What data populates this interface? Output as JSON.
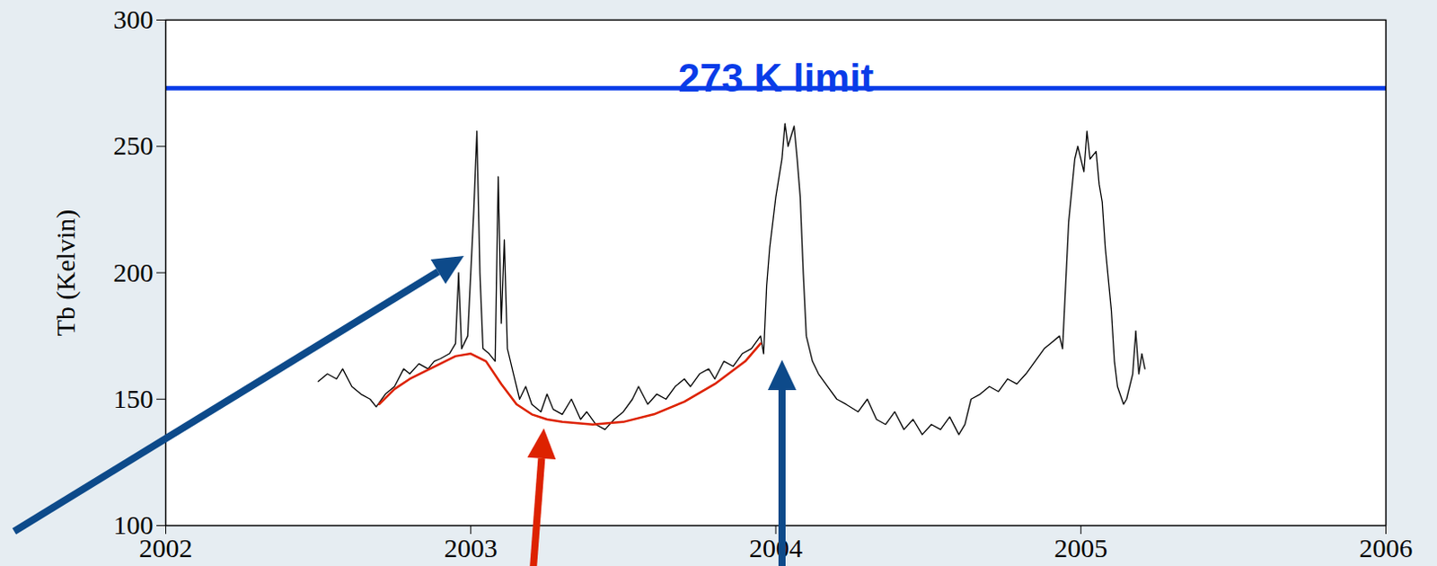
{
  "chart_data": {
    "type": "line",
    "y_label": "Tb (Kelvin)",
    "xlim": [
      2002,
      2006
    ],
    "xticks": [
      2002,
      2003,
      2004,
      2005,
      2006
    ],
    "ylim": [
      100,
      300
    ],
    "yticks": [
      100,
      150,
      200,
      250,
      300
    ],
    "x": [
      2002.5,
      2002.53,
      2002.56,
      2002.58,
      2002.61,
      2002.64,
      2002.67,
      2002.69,
      2002.72,
      2002.75,
      2002.78,
      2002.8,
      2002.83,
      2002.86,
      2002.88,
      2002.9,
      2002.93,
      2002.95,
      2002.96,
      2002.97,
      2002.99,
      2003.01,
      2003.02,
      2003.03,
      2003.04,
      2003.06,
      2003.08,
      2003.09,
      2003.1,
      2003.11,
      2003.12,
      2003.14,
      2003.16,
      2003.18,
      2003.2,
      2003.23,
      2003.25,
      2003.27,
      2003.3,
      2003.33,
      2003.36,
      2003.38,
      2003.41,
      2003.44,
      2003.47,
      2003.5,
      2003.53,
      2003.55,
      2003.58,
      2003.61,
      2003.64,
      2003.67,
      2003.7,
      2003.72,
      2003.75,
      2003.78,
      2003.8,
      2003.83,
      2003.86,
      2003.89,
      2003.92,
      2003.95,
      2003.96,
      2003.97,
      2003.98,
      2004.0,
      2004.02,
      2004.03,
      2004.04,
      2004.06,
      2004.07,
      2004.08,
      2004.09,
      2004.1,
      2004.12,
      2004.14,
      2004.17,
      2004.2,
      2004.23,
      2004.27,
      2004.3,
      2004.33,
      2004.36,
      2004.39,
      2004.42,
      2004.45,
      2004.48,
      2004.51,
      2004.54,
      2004.57,
      2004.6,
      2004.62,
      2004.64,
      2004.67,
      2004.7,
      2004.73,
      2004.76,
      2004.79,
      2004.82,
      2004.85,
      2004.88,
      2004.9,
      2004.93,
      2004.94,
      2004.95,
      2004.96,
      2004.98,
      2004.99,
      2005.01,
      2005.02,
      2005.03,
      2005.05,
      2005.06,
      2005.07,
      2005.08,
      2005.1,
      2005.11,
      2005.12,
      2005.14,
      2005.15,
      2005.17,
      2005.18,
      2005.19,
      2005.2,
      2005.21
    ],
    "series": [
      {
        "color": "#000000",
        "values": [
          157,
          160,
          158,
          162,
          155,
          152,
          150,
          147,
          152,
          155,
          162,
          160,
          164,
          162,
          165,
          166,
          168,
          172,
          200,
          170,
          175,
          225,
          256,
          200,
          170,
          168,
          165,
          238,
          180,
          213,
          170,
          160,
          150,
          155,
          148,
          145,
          152,
          146,
          144,
          150,
          142,
          145,
          140,
          138,
          142,
          145,
          150,
          155,
          148,
          152,
          150,
          155,
          158,
          155,
          160,
          162,
          158,
          165,
          163,
          168,
          170,
          175,
          168,
          195,
          210,
          230,
          245,
          259,
          250,
          258,
          245,
          230,
          200,
          175,
          165,
          160,
          155,
          150,
          148,
          145,
          150,
          142,
          140,
          145,
          138,
          142,
          136,
          140,
          138,
          143,
          136,
          140,
          150,
          152,
          155,
          153,
          158,
          156,
          160,
          165,
          170,
          172,
          175,
          170,
          195,
          220,
          245,
          250,
          240,
          256,
          245,
          248,
          235,
          228,
          210,
          185,
          165,
          155,
          148,
          150,
          160,
          177,
          160,
          168,
          162
        ]
      },
      {
        "color": "#dd2200",
        "x": [
          2002.7,
          2002.75,
          2002.8,
          2002.85,
          2002.9,
          2002.95,
          2003.0,
          2003.05,
          2003.1,
          2003.15,
          2003.2,
          2003.25,
          2003.3,
          2003.4,
          2003.5,
          2003.6,
          2003.7,
          2003.8,
          2003.9,
          2003.95
        ],
        "values": [
          148,
          154,
          158,
          161,
          164,
          167,
          168,
          165,
          156,
          148,
          144,
          142,
          141,
          140,
          141,
          144,
          149,
          156,
          165,
          172
        ]
      }
    ],
    "annotations": [
      {
        "text": "273 K limit",
        "value": 273,
        "color": "#0a3ce8"
      }
    ]
  }
}
